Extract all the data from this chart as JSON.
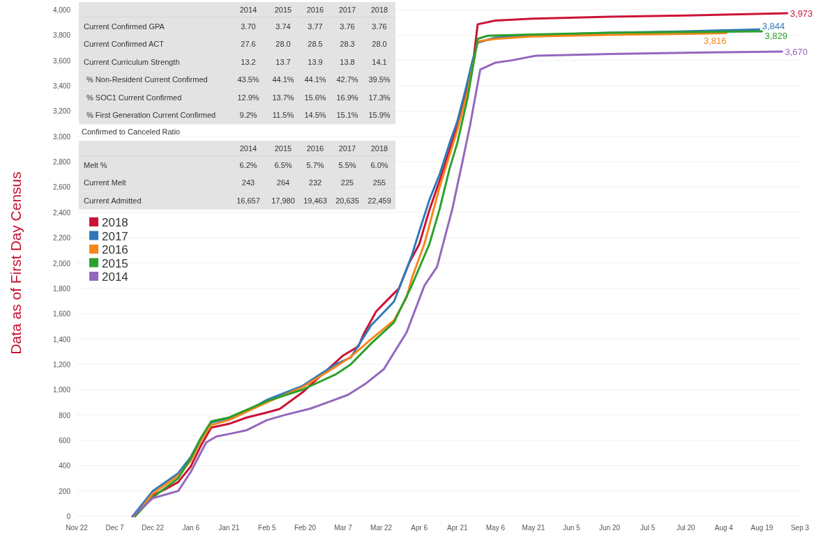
{
  "chart_data": {
    "type": "line",
    "ylabel": "Data as of First Day Census",
    "xlim": [
      "2018-11-22",
      "2019-09-03"
    ],
    "xticks": [
      {
        "value": "2018-11-22",
        "label": "Nov 22"
      },
      {
        "value": "2018-12-07",
        "label": "Dec 7"
      },
      {
        "value": "2018-12-22",
        "label": "Dec 22"
      },
      {
        "value": "2019-01-06",
        "label": "Jan 6"
      },
      {
        "value": "2019-01-21",
        "label": "Jan 21"
      },
      {
        "value": "2019-02-05",
        "label": "Feb 5"
      },
      {
        "value": "2019-02-20",
        "label": "Feb 20"
      },
      {
        "value": "2019-03-07",
        "label": "Mar 7"
      },
      {
        "value": "2019-03-22",
        "label": "Mar 22"
      },
      {
        "value": "2019-04-06",
        "label": "Apr 6"
      },
      {
        "value": "2019-04-21",
        "label": "Apr 21"
      },
      {
        "value": "2019-05-06",
        "label": "May 6"
      },
      {
        "value": "2019-05-21",
        "label": "May 21"
      },
      {
        "value": "2019-06-05",
        "label": "Jun 5"
      },
      {
        "value": "2019-06-20",
        "label": "Jun 20"
      },
      {
        "value": "2019-07-05",
        "label": "Jul 5"
      },
      {
        "value": "2019-07-20",
        "label": "Jul 20"
      },
      {
        "value": "2019-08-04",
        "label": "Aug 4"
      },
      {
        "value": "2019-08-19",
        "label": "Aug 19"
      },
      {
        "value": "2019-09-03",
        "label": "Sep 3"
      }
    ],
    "ylim": [
      0,
      4000
    ],
    "yticks": [
      0,
      200,
      400,
      600,
      800,
      {
        "value": 1000,
        "label": "1,000"
      },
      {
        "value": 1200,
        "label": "1,200"
      },
      {
        "value": 1400,
        "label": "1,400"
      },
      {
        "value": 1600,
        "label": "1,600"
      },
      {
        "value": 1800,
        "label": "1,800"
      },
      {
        "value": 2000,
        "label": "2,000"
      },
      {
        "value": 2200,
        "label": "2,200"
      },
      {
        "value": 2400,
        "label": "2,400"
      },
      {
        "value": 2600,
        "label": "2,600"
      },
      {
        "value": 2800,
        "label": "2,800"
      },
      {
        "value": 3000,
        "label": "3,000"
      },
      {
        "value": 3200,
        "label": "3,200"
      },
      {
        "value": 3400,
        "label": "3,400"
      },
      {
        "value": 3600,
        "label": "3,600"
      },
      {
        "value": 3800,
        "label": "3,800"
      },
      {
        "value": 4000,
        "label": "4,000"
      }
    ],
    "grid": "y",
    "legend": "top left",
    "marker": "none",
    "line_style": "solid",
    "series": [
      {
        "name": "2018",
        "color": "#cc1236",
        "x": [
          "2018-12-14",
          "2018-12-18",
          "2018-12-22",
          "2018-12-27",
          "2019-01-01",
          "2019-01-06",
          "2019-01-10",
          "2019-01-14",
          "2019-01-21",
          "2019-01-28",
          "2019-02-05",
          "2019-02-10",
          "2019-02-19",
          "2019-02-28",
          "2019-03-07",
          "2019-03-13",
          "2019-03-15",
          "2019-03-20",
          "2019-03-25",
          "2019-03-29",
          "2019-04-02",
          "2019-04-06",
          "2019-04-10",
          "2019-04-14",
          "2019-04-18",
          "2019-04-21",
          "2019-04-24",
          "2019-04-27",
          "2019-04-29",
          "2019-05-06",
          "2019-05-21",
          "2019-06-20",
          "2019-07-20",
          "2019-08-29"
        ],
        "values": [
          0,
          80,
          165,
          215,
          270,
          395,
          560,
          700,
          730,
          780,
          820,
          847,
          979,
          1144,
          1270,
          1342,
          1436,
          1618,
          1720,
          1800,
          2000,
          2150,
          2420,
          2650,
          2900,
          3090,
          3300,
          3550,
          3885,
          3915,
          3930,
          3945,
          3955,
          3973
        ],
        "value_labels": [
          null,
          null,
          null,
          null,
          null,
          null,
          null,
          null,
          null,
          null,
          null,
          null,
          null,
          null,
          null,
          null,
          null,
          null,
          null,
          null,
          null,
          null,
          null,
          null,
          null,
          null,
          null,
          null,
          null,
          null,
          null,
          null,
          null,
          "3,973"
        ]
      },
      {
        "name": "2017",
        "color": "#2e7ab8",
        "x": [
          "2018-12-14",
          "2018-12-18",
          "2018-12-22",
          "2018-12-27",
          "2019-01-01",
          "2019-01-06",
          "2019-01-10",
          "2019-01-14",
          "2019-01-21",
          "2019-01-28",
          "2019-02-05",
          "2019-02-10",
          "2019-02-19",
          "2019-02-26",
          "2019-03-04",
          "2019-03-10",
          "2019-03-18",
          "2019-03-27",
          "2019-04-03",
          "2019-04-06",
          "2019-04-10",
          "2019-04-14",
          "2019-04-18",
          "2019-04-21",
          "2019-04-24",
          "2019-04-27",
          "2019-04-29",
          "2019-05-06",
          "2019-05-21",
          "2019-06-20",
          "2019-07-20",
          "2019-08-18"
        ],
        "values": [
          0,
          100,
          200,
          270,
          340,
          470,
          620,
          740,
          775,
          830,
          920,
          960,
          1030,
          1122,
          1200,
          1254,
          1508,
          1695,
          2058,
          2250,
          2500,
          2700,
          2950,
          3120,
          3350,
          3600,
          3740,
          3780,
          3800,
          3818,
          3830,
          3844
        ],
        "value_labels": [
          null,
          null,
          null,
          null,
          null,
          null,
          null,
          null,
          null,
          null,
          null,
          null,
          null,
          null,
          null,
          null,
          null,
          null,
          null,
          null,
          null,
          null,
          null,
          null,
          null,
          null,
          null,
          null,
          null,
          null,
          null,
          "3,844"
        ]
      },
      {
        "name": "2016",
        "color": "#f7861a",
        "x": [
          "2018-12-15",
          "2018-12-22",
          "2019-01-01",
          "2019-01-06",
          "2019-01-10",
          "2019-01-14",
          "2019-01-21",
          "2019-02-05",
          "2019-02-19",
          "2019-03-04",
          "2019-03-10",
          "2019-03-18",
          "2019-03-27",
          "2019-04-01",
          "2019-04-03",
          "2019-04-08",
          "2019-04-14",
          "2019-04-21",
          "2019-04-25",
          "2019-04-29",
          "2019-05-06",
          "2019-05-21",
          "2019-06-20",
          "2019-07-20",
          "2019-08-05"
        ],
        "values": [
          0,
          180,
          320,
          440,
          600,
          720,
          760,
          900,
          1020,
          1180,
          1260,
          1398,
          1546,
          1728,
          1876,
          2151,
          2600,
          3050,
          3350,
          3750,
          3770,
          3790,
          3802,
          3810,
          3816
        ],
        "value_labels": [
          null,
          null,
          null,
          null,
          null,
          null,
          null,
          null,
          null,
          null,
          null,
          null,
          null,
          null,
          null,
          null,
          null,
          null,
          null,
          null,
          null,
          null,
          null,
          null,
          "3,816"
        ]
      },
      {
        "name": "2015",
        "color": "#2ca02c",
        "x": [
          "2018-12-15",
          "2018-12-22",
          "2019-01-01",
          "2019-01-06",
          "2019-01-10",
          "2019-01-14",
          "2019-01-21",
          "2019-02-05",
          "2019-02-19",
          "2019-03-04",
          "2019-03-10",
          "2019-03-18",
          "2019-03-27",
          "2019-04-03",
          "2019-04-10",
          "2019-04-14",
          "2019-04-18",
          "2019-04-21",
          "2019-04-25",
          "2019-04-29",
          "2019-05-03",
          "2019-05-21",
          "2019-06-20",
          "2019-07-20",
          "2019-08-19"
        ],
        "values": [
          0,
          150,
          300,
          460,
          620,
          750,
          780,
          910,
          1000,
          1120,
          1200,
          1364,
          1530,
          1821,
          2151,
          2426,
          2750,
          2950,
          3300,
          3770,
          3795,
          3805,
          3818,
          3824,
          3829
        ],
        "value_labels": [
          null,
          null,
          null,
          null,
          null,
          null,
          null,
          null,
          null,
          null,
          null,
          null,
          null,
          null,
          null,
          null,
          null,
          null,
          null,
          null,
          null,
          null,
          null,
          null,
          "3,829"
        ]
      },
      {
        "name": "2014",
        "color": "#9467bd",
        "x": [
          "2018-12-14",
          "2018-12-22",
          "2019-01-01",
          "2019-01-06",
          "2019-01-12",
          "2019-01-16",
          "2019-01-21",
          "2019-01-28",
          "2019-02-05",
          "2019-02-12",
          "2019-02-22",
          "2019-03-01",
          "2019-03-09",
          "2019-03-16",
          "2019-03-23",
          "2019-04-01",
          "2019-04-08",
          "2019-04-13",
          "2019-04-19",
          "2019-04-23",
          "2019-04-26",
          "2019-04-30",
          "2019-05-06",
          "2019-05-12",
          "2019-05-22",
          "2019-06-20",
          "2019-07-20",
          "2019-08-27"
        ],
        "values": [
          0,
          143,
          200,
          352,
          583,
          630,
          650,
          680,
          760,
          800,
          850,
          900,
          960,
          1050,
          1161,
          1453,
          1821,
          1970,
          2426,
          2800,
          3087,
          3527,
          3582,
          3599,
          3637,
          3650,
          3660,
          3670
        ],
        "value_labels": [
          null,
          null,
          null,
          null,
          null,
          null,
          null,
          null,
          null,
          null,
          null,
          null,
          null,
          null,
          null,
          null,
          null,
          null,
          null,
          null,
          null,
          null,
          null,
          null,
          null,
          null,
          null,
          "3,670"
        ]
      }
    ],
    "annotations": [
      "\t2014\t2015\t2016\t2017\t2018",
      "Current Confirmed GPA\t3.70\t3.74\t3.77\t3.76\t3.76",
      "Current Confirmed ACT\t27.6\t28.0\t28.5\t28.3\t28.0",
      "Current Curriculum Strength\t13.2\t13.7\t13.9\t13.8\t14.1",
      "% Non-Resident Current Confirmed\t43.5%\t44.1%\t44.1%\t42.7%\t39.5%",
      "% SOC1 Current Confirmed\t12.9%\t13.7%\t15.6%\t16.9%\t17.3%",
      "% First Generation Current Confirmed\t9.2%\t11.5%\t14.5%\t15.1%\t15.9%",
      "Confirmed to Canceled Ratio",
      "\t2014\t2015\t2016\t2017\t2018",
      "Melt %\t6.2%\t6.5%\t5.7%\t5.5%\t6.0%",
      "Current Melt\t243\t264\t232\t225\t255",
      "Current Admitted\t16,657\t17,980\t19,463\t20,635\t22,459"
    ]
  }
}
